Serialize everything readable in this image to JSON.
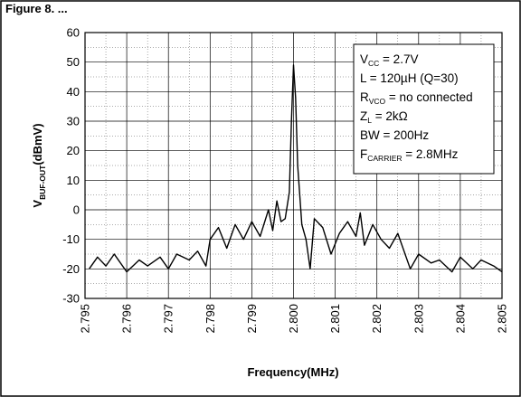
{
  "header": {
    "title": "Figure 8. ..."
  },
  "chart_data": {
    "type": "line",
    "xlabel": "Frequency(MHz)",
    "ylabel": {
      "main": "V",
      "sub": "BUF-OUT",
      "suffix": "(dBmV)"
    },
    "xlim": [
      2.795,
      2.805
    ],
    "ylim": [
      -30,
      60
    ],
    "x_ticks": [
      "2.795",
      "2.796",
      "2.797",
      "2.798",
      "2.799",
      "2.800",
      "2.801",
      "2.802",
      "2.803",
      "2.804",
      "2.805"
    ],
    "y_ticks": [
      "60",
      "50",
      "40",
      "30",
      "20",
      "10",
      "0",
      "-10",
      "-20",
      "-30"
    ],
    "grid": true,
    "legend_box": [
      {
        "main": "V",
        "sub": "CC",
        "rest": " = 2.7V"
      },
      {
        "main": "L = 120µH (Q=30)",
        "sub": "",
        "rest": ""
      },
      {
        "main": "R",
        "sub": "VCO",
        "rest": " = no connected"
      },
      {
        "main": "Z",
        "sub": "L",
        "rest": " = 2kΩ"
      },
      {
        "main": "BW = 200Hz",
        "sub": "",
        "rest": ""
      },
      {
        "main": "F",
        "sub": "CARRIER",
        "rest": " = 2.8MHz"
      }
    ],
    "series": [
      {
        "x": [
          2.7951,
          2.7953,
          2.7955,
          2.7957,
          2.796,
          2.7963,
          2.7965,
          2.7968,
          2.797,
          2.7972,
          2.7975,
          2.7977,
          2.7979,
          2.798,
          2.7982,
          2.7984,
          2.7986,
          2.7988,
          2.799,
          2.7992,
          2.7994,
          2.7995,
          2.7996,
          2.7997,
          2.7998,
          2.7999,
          2.79995,
          2.8,
          2.80005,
          2.8001,
          2.8002,
          2.8003,
          2.8004,
          2.8005,
          2.8007,
          2.8009,
          2.8011,
          2.8013,
          2.8015,
          2.8016,
          2.8017,
          2.8019,
          2.8021,
          2.8023,
          2.8025,
          2.8028,
          2.803,
          2.8033,
          2.8035,
          2.8038,
          2.804,
          2.8043,
          2.8045,
          2.8048,
          2.805
        ],
        "y": [
          -20,
          -16,
          -19,
          -15,
          -21,
          -17,
          -19,
          -16,
          -20,
          -15,
          -17,
          -14,
          -19,
          -10,
          -6,
          -13,
          -5,
          -10,
          -4,
          -9,
          0,
          -7,
          3,
          -4,
          -3,
          6,
          30,
          49,
          38,
          15,
          -5,
          -10,
          -20,
          -3,
          -6,
          -15,
          -8,
          -4,
          -9,
          -1,
          -12,
          -5,
          -10,
          -13,
          -8,
          -20,
          -15,
          -18,
          -17,
          -21,
          -16,
          -20,
          -17,
          -19,
          -21
        ]
      }
    ]
  }
}
